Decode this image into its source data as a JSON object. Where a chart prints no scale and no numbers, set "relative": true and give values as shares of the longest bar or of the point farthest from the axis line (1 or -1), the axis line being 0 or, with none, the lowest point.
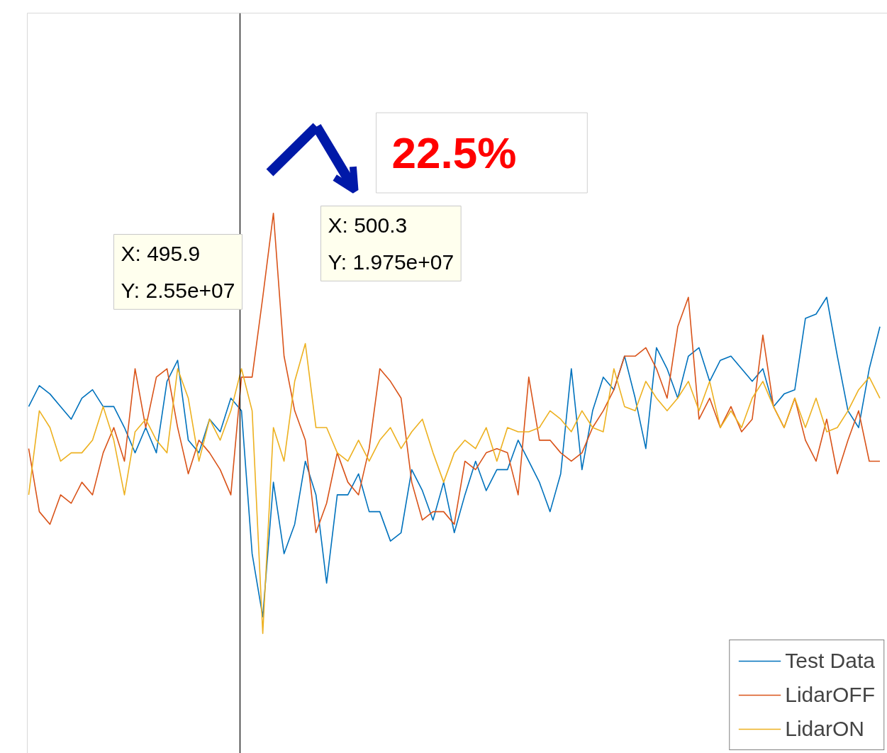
{
  "chart_data": {
    "type": "line",
    "relative": true,
    "tick_labels": false,
    "legend": "bottom right",
    "line_style": "solid",
    "categories": [
      null,
      null,
      null,
      null,
      null,
      null,
      null,
      null,
      null,
      null,
      null,
      null,
      null,
      null,
      null,
      null,
      null,
      null,
      null,
      null,
      null,
      null,
      null,
      null,
      null,
      null,
      null,
      null,
      null,
      null,
      null,
      null,
      null,
      null,
      null,
      null,
      null,
      null,
      null,
      null,
      null,
      null,
      null,
      null,
      null,
      null,
      null,
      null,
      null,
      null,
      null,
      null,
      null,
      null,
      null,
      null,
      null,
      null,
      null,
      null,
      null,
      null,
      null,
      null,
      null,
      null,
      null,
      null,
      null,
      null,
      null,
      null,
      null,
      null,
      null,
      null,
      null,
      null,
      null,
      null,
      null
    ],
    "series": [
      {
        "name": "Test Data",
        "color": "#0072bd",
        "values": [
          0.54,
          0.59,
          0.57,
          0.54,
          0.51,
          0.56,
          0.58,
          0.54,
          0.54,
          0.49,
          0.43,
          0.49,
          0.43,
          0.6,
          0.65,
          0.46,
          0.43,
          0.51,
          0.48,
          0.56,
          0.53,
          0.19,
          0.04,
          0.36,
          0.19,
          0.26,
          0.41,
          0.33,
          0.12,
          0.33,
          0.33,
          0.38,
          0.29,
          0.29,
          0.22,
          0.24,
          0.39,
          0.34,
          0.27,
          0.36,
          0.24,
          0.33,
          0.41,
          0.34,
          0.39,
          0.39,
          0.46,
          0.41,
          0.36,
          0.29,
          0.38,
          0.63,
          0.39,
          0.53,
          0.61,
          0.58,
          0.66,
          0.56,
          0.44,
          0.68,
          0.63,
          0.56,
          0.66,
          0.68,
          0.6,
          0.65,
          0.66,
          0.63,
          0.6,
          0.63,
          0.54,
          0.57,
          0.58,
          0.75,
          0.76,
          0.8,
          0.66,
          0.53,
          0.49,
          0.63,
          0.73
        ]
      },
      {
        "name": "LidarOFF",
        "color": "#d95319",
        "values": [
          0.44,
          0.29,
          0.26,
          0.33,
          0.31,
          0.36,
          0.33,
          0.43,
          0.49,
          0.41,
          0.63,
          0.49,
          0.61,
          0.63,
          0.49,
          0.38,
          0.46,
          0.43,
          0.39,
          0.33,
          0.61,
          0.61,
          0.8,
          1.0,
          0.66,
          0.53,
          0.46,
          0.24,
          0.31,
          0.43,
          0.36,
          0.33,
          0.44,
          0.63,
          0.6,
          0.56,
          0.36,
          0.27,
          0.29,
          0.29,
          0.26,
          0.41,
          0.39,
          0.43,
          0.44,
          0.43,
          0.33,
          0.61,
          0.46,
          0.46,
          0.43,
          0.41,
          0.43,
          0.49,
          0.53,
          0.58,
          0.66,
          0.66,
          0.68,
          0.63,
          0.56,
          0.73,
          0.8,
          0.51,
          0.56,
          0.49,
          0.54,
          0.48,
          0.51,
          0.71,
          0.54,
          0.49,
          0.56,
          0.46,
          0.41,
          0.51,
          0.38,
          0.46,
          0.53,
          0.41,
          0.41
        ]
      },
      {
        "name": "LidarON",
        "color": "#edb120",
        "values": [
          0.33,
          0.53,
          0.49,
          0.41,
          0.43,
          0.43,
          0.46,
          0.54,
          0.46,
          0.33,
          0.48,
          0.51,
          0.46,
          0.43,
          0.63,
          0.56,
          0.41,
          0.51,
          0.46,
          0.53,
          0.63,
          0.53,
          0.0,
          0.49,
          0.41,
          0.6,
          0.69,
          0.49,
          0.49,
          0.43,
          0.41,
          0.46,
          0.41,
          0.46,
          0.49,
          0.44,
          0.48,
          0.51,
          0.43,
          0.36,
          0.43,
          0.46,
          0.44,
          0.49,
          0.41,
          0.49,
          0.48,
          0.48,
          0.49,
          0.53,
          0.51,
          0.48,
          0.53,
          0.49,
          0.48,
          0.63,
          0.54,
          0.53,
          0.6,
          0.56,
          0.53,
          0.56,
          0.6,
          0.53,
          0.6,
          0.49,
          0.53,
          0.49,
          0.56,
          0.6,
          0.54,
          0.49,
          0.56,
          0.49,
          0.56,
          0.48,
          0.49,
          0.53,
          0.58,
          0.61,
          0.56
        ]
      }
    ],
    "annotations": [
      "X: 495.9\nY: 2.55e+07",
      "X: 500.3\nY: 1.975e+07",
      "22.5%"
    ]
  }
}
